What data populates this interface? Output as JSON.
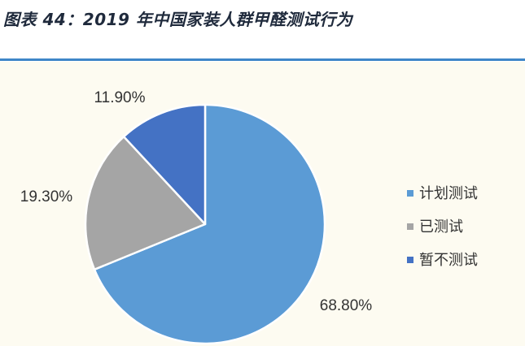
{
  "title": "图表 44：2019 年中国家装人群甲醛测试行为",
  "colors": {
    "title_rule": "#3f86c8",
    "chart_background": "#fdfbf1"
  },
  "chart_data": {
    "type": "pie",
    "title": "",
    "legend_position": "right",
    "start_angle_deg": 0,
    "direction": "clockwise",
    "slices": [
      {
        "label": "计划测试",
        "value": 68.8,
        "value_label": "68.80%",
        "color": "#5b9bd5"
      },
      {
        "label": "已测试",
        "value": 19.3,
        "value_label": "19.30%",
        "color": "#a5a5a5"
      },
      {
        "label": "暂不测试",
        "value": 11.9,
        "value_label": "11.90%",
        "color": "#4472c4"
      }
    ]
  }
}
